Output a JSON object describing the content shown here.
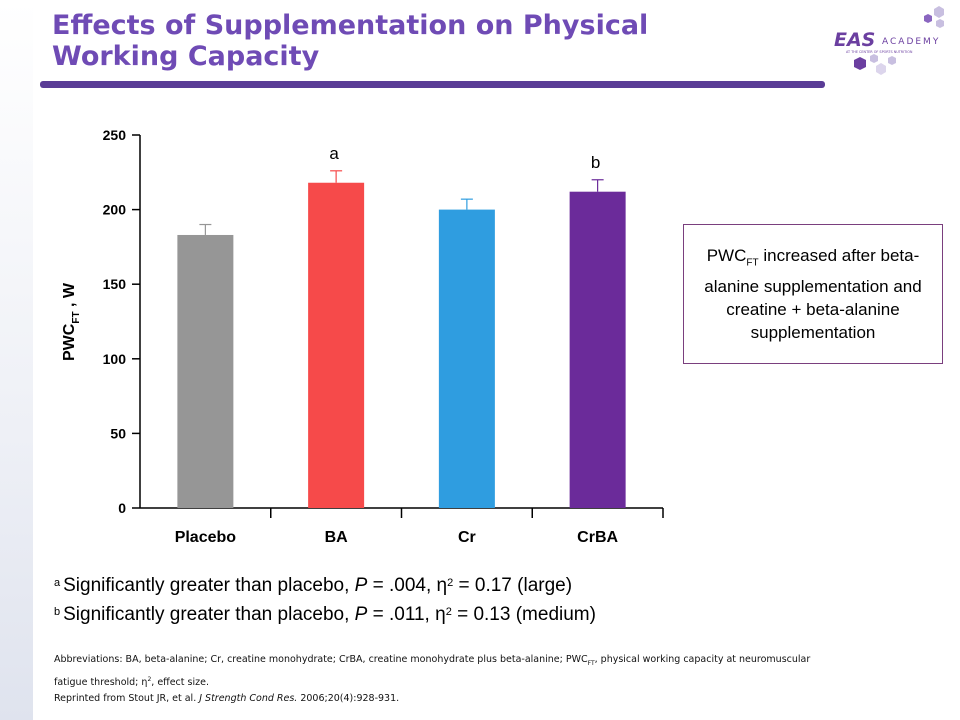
{
  "header": {
    "title": "Effects of Supplementation on Physical Working Capacity",
    "logo_brand": "EAS",
    "logo_word": "ACADEMY",
    "logo_tagline": "AT THE CENTER OF SPORTS NUTRITION"
  },
  "chart_data": {
    "type": "bar",
    "categories": [
      "Placebo",
      "BA",
      "Cr",
      "CrBA"
    ],
    "values": [
      183,
      218,
      200,
      212
    ],
    "errors": [
      7,
      8,
      7,
      8
    ],
    "bar_colors": [
      "#969696",
      "#f64a4a",
      "#2f9de0",
      "#6b2b9a"
    ],
    "error_colors": [
      "#969696",
      "#f64a4a",
      "#2f9de0",
      "#6b2b9a"
    ],
    "significance_labels": [
      "",
      "a",
      "",
      "b"
    ],
    "ylabel_main": "PWC",
    "ylabel_sub": "FT",
    "ylabel_unit": " , W",
    "yticks": [
      0,
      50,
      100,
      150,
      200,
      250
    ],
    "ylim": [
      0,
      250
    ],
    "grid": false,
    "legend": "none"
  },
  "note": {
    "prefix": "PWC",
    "prefix_sub": "FT",
    "text": " increased after beta-alanine supplementation and creatine + beta-alanine supplementation"
  },
  "footnotes": [
    {
      "marker": "a",
      "text_before": "Significantly greater than placebo, ",
      "p_symbol": "P",
      "text_after_p": " = .004, ",
      "eta_symbol": "η",
      "eta_exp": "2",
      "text_end": " = 0.17 (large)"
    },
    {
      "marker": "b",
      "text_before": "Significantly greater than placebo, ",
      "p_symbol": "P",
      "text_after_p": " = .011, ",
      "eta_symbol": "η",
      "eta_exp": "2",
      "text_end": " = 0.13 (medium)"
    }
  ],
  "abbreviations": {
    "line1": "Abbreviations: BA, beta-alanine; Cr, creatine monohydrate; CrBA, creatine monohydrate plus beta-alanine; PWC",
    "line1_sub": "FT",
    "line1_end": ", physical working capacity at neuromuscular",
    "line2_start": "fatigue threshold; ",
    "line2_eta": "η",
    "line2_exp": "2",
    "line2_end": ", effect size.",
    "reprint_start": "Reprinted from Stout JR, et al. ",
    "reprint_journal": "J Strength Cond Res.",
    "reprint_end": " 2006;20(4):928-931."
  },
  "colors": {
    "title": "#6f4bb5",
    "rule": "#5a3c96",
    "note_border": "#7a3f7e",
    "logo_purple": "#6b3fa0",
    "logo_light": "#c8bfe0"
  }
}
